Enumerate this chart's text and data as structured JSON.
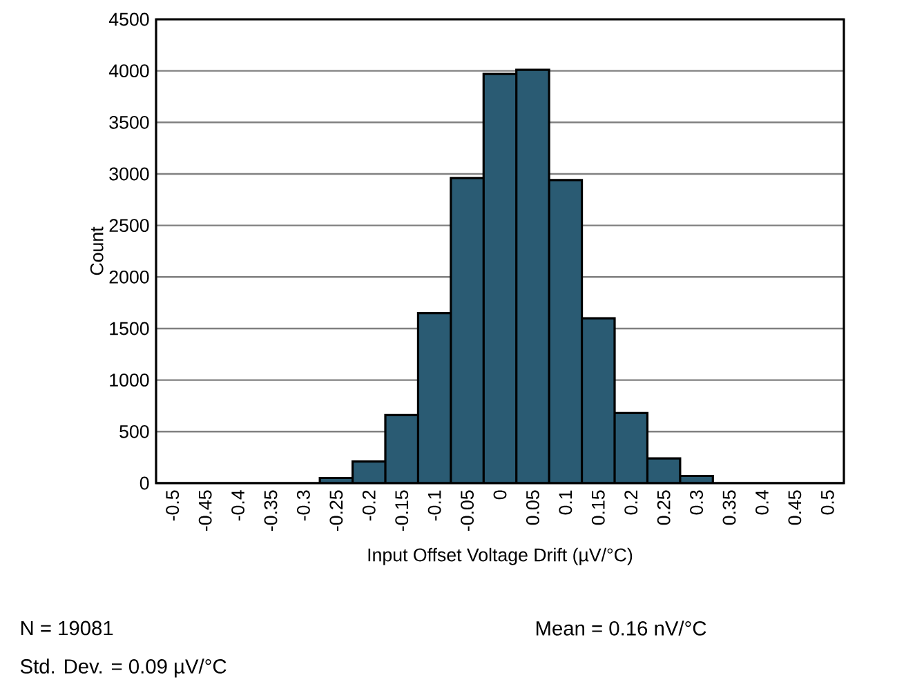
{
  "chart_data": {
    "type": "bar",
    "xlabel": "Input Offset Voltage Drift (µV/°C)",
    "ylabel": "Count",
    "categories": [
      "-0.5",
      "-0.45",
      "-0.4",
      "-0.35",
      "-0.3",
      "-0.25",
      "-0.2",
      "-0.15",
      "-0.1",
      "-0.05",
      "0",
      "0.05",
      "0.1",
      "0.15",
      "0.2",
      "0.25",
      "0.3",
      "0.35",
      "0.4",
      "0.45",
      "0.5"
    ],
    "values": [
      0,
      0,
      0,
      0,
      0,
      50,
      210,
      660,
      1650,
      2960,
      3970,
      4010,
      2940,
      1600,
      680,
      240,
      70,
      0,
      0,
      0,
      0
    ],
    "color": "#2a5b73",
    "ylim": [
      0,
      4500
    ],
    "yticks": [
      0,
      500,
      1000,
      1500,
      2000,
      2500,
      3000,
      3500,
      4000,
      4500
    ],
    "grid": "y",
    "annotations": [
      "N = 19081",
      "Mean = 0.16 nV/°C",
      "Std. Dev. = 0.09 µV/°C"
    ]
  }
}
